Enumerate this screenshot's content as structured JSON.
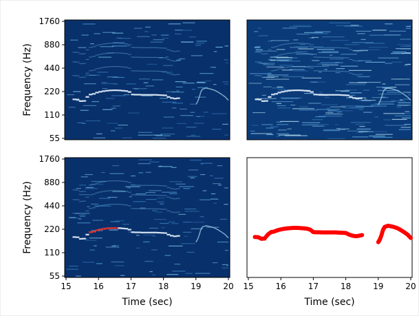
{
  "chart_data": [
    {
      "type": "heatmap",
      "panel": "top-left",
      "ylabel": "Frequency (Hz)",
      "xlabel": "",
      "y_scale": "log2",
      "ylim": [
        55,
        1760
      ],
      "xlim": [
        15,
        20
      ],
      "yticks": [
        "55",
        "110",
        "220",
        "440",
        "880",
        "1760"
      ],
      "colormap": "Blues_r",
      "background_color": "#08306b"
    },
    {
      "type": "heatmap",
      "panel": "top-right",
      "xlabel": "",
      "ylabel": "",
      "y_scale": "log2",
      "ylim": [
        55,
        1760
      ],
      "xlim": [
        15,
        20
      ],
      "colormap": "Blues_r",
      "background_color": "#0b3a78"
    },
    {
      "type": "heatmap",
      "panel": "bottom-left",
      "ylabel": "Frequency (Hz)",
      "xlabel": "Time (sec)",
      "y_scale": "log2",
      "ylim": [
        55,
        1760
      ],
      "xlim": [
        15,
        20
      ],
      "xticks": [
        "15",
        "16",
        "17",
        "18",
        "19",
        "20"
      ],
      "yticks": [
        "55",
        "110",
        "220",
        "440",
        "880",
        "1760"
      ],
      "colormap": "Blues_r",
      "overlay_color": "#d62728",
      "background_color": "#08306b"
    },
    {
      "type": "scatter",
      "panel": "bottom-right",
      "xlabel": "Time (sec)",
      "ylabel": "",
      "y_scale": "log2",
      "ylim": [
        55,
        1760
      ],
      "xlim": [
        15,
        20
      ],
      "xticks": [
        "15",
        "16",
        "17",
        "18",
        "19",
        "20"
      ],
      "marker_color": "#ff0000",
      "series": [
        {
          "x": [
            15.2,
            15.3,
            15.4,
            15.5,
            15.6,
            15.7,
            15.8,
            15.9,
            16.0,
            16.1,
            16.2,
            16.3,
            16.4,
            16.5,
            16.6,
            16.7,
            16.8,
            16.9,
            17.0,
            17.1,
            17.2,
            17.3,
            17.4,
            17.5,
            17.6,
            17.7,
            17.8,
            17.9,
            18.0,
            18.1,
            18.2,
            18.3,
            18.4,
            18.5
          ],
          "y": [
            175,
            174,
            166,
            167,
            188,
            202,
            206,
            214,
            219,
            223,
            226,
            228,
            229,
            229,
            228,
            226,
            224,
            218,
            202,
            201,
            201,
            200,
            200,
            200,
            200,
            200,
            199,
            198,
            197,
            188,
            182,
            179,
            181,
            185
          ]
        },
        {
          "x": [
            19.0,
            19.05,
            19.1,
            19.15,
            19.2,
            19.3,
            19.4,
            19.5,
            19.6,
            19.7,
            19.8,
            19.9,
            20.0
          ],
          "y": [
            150,
            163,
            185,
            218,
            236,
            244,
            240,
            234,
            226,
            214,
            201,
            188,
            170
          ]
        }
      ]
    }
  ]
}
